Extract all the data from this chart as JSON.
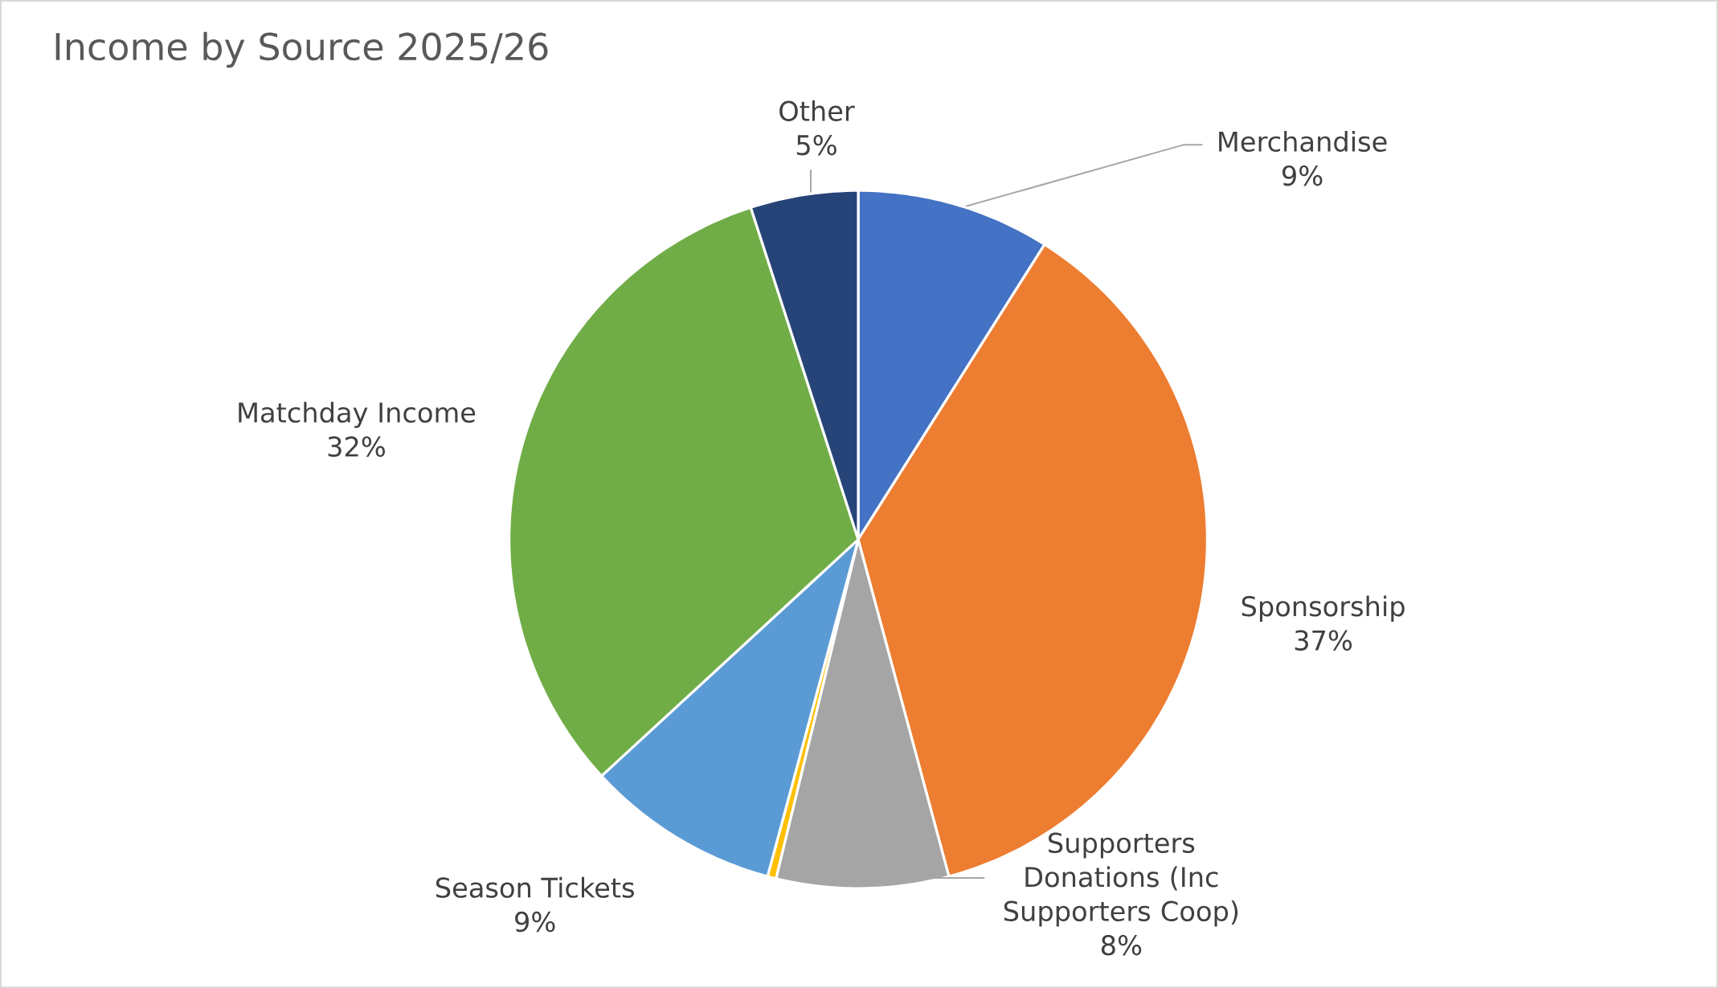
{
  "chart_data": {
    "type": "pie",
    "title": "Income by Source 2025/26",
    "categories": [
      "Merchandise",
      "Sponsorship",
      "Supporters Donations (Inc Supporters Coop)",
      null,
      "Season Tickets",
      "Matchday Income",
      "Other"
    ],
    "values": [
      9,
      37,
      8,
      0.4,
      9,
      32,
      5
    ],
    "value_labels": [
      "9%",
      "37%",
      "8%",
      null,
      "9%",
      "32%",
      "5%"
    ],
    "colors": [
      "#4472c4",
      "#ed7d31",
      "#a5a5a5",
      "#ffc000",
      "#5b9bd5",
      "#70ad47",
      "#264478"
    ]
  }
}
